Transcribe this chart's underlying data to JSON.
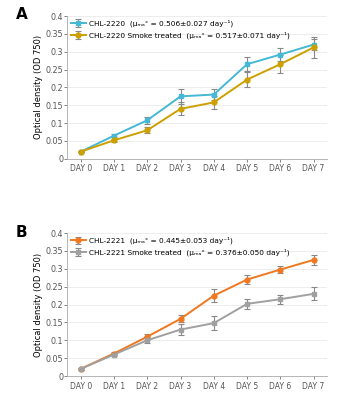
{
  "days": [
    0,
    1,
    2,
    3,
    4,
    5,
    6,
    7
  ],
  "day_labels": [
    "DAY 0",
    "DAY 1",
    "DAY 2",
    "DAY 3",
    "DAY 4",
    "DAY 5",
    "DAY 6",
    "DAY 7"
  ],
  "panel_A": {
    "label": "A",
    "series1": {
      "label": "CHL-2220  (μₘₐˣ = 0.506±0.027 day⁻¹)",
      "color": "#45B8D5",
      "marker": "s",
      "values": [
        0.02,
        0.065,
        0.108,
        0.175,
        0.18,
        0.265,
        0.292,
        0.32
      ],
      "errors": [
        0.002,
        0.005,
        0.01,
        0.02,
        0.015,
        0.02,
        0.018,
        0.015
      ]
    },
    "series2": {
      "label": "CHL-2220 Smoke treated  (μₘₐˣ = 0.517±0.071 day⁻¹)",
      "color": "#CCA000",
      "marker": "o",
      "values": [
        0.02,
        0.052,
        0.08,
        0.14,
        0.158,
        0.222,
        0.265,
        0.312
      ],
      "errors": [
        0.002,
        0.005,
        0.008,
        0.018,
        0.018,
        0.022,
        0.025,
        0.03
      ]
    },
    "ylim": [
      0,
      0.4
    ],
    "yticks": [
      0,
      0.05,
      0.1,
      0.15,
      0.2,
      0.25,
      0.3,
      0.35,
      0.4
    ],
    "ytick_labels": [
      "0",
      "0.05",
      "0.1",
      "0.15",
      "0.2",
      "0.25",
      "0.3",
      "0.35",
      "0.4"
    ],
    "ylabel": "Optical density (OD 750)"
  },
  "panel_B": {
    "label": "B",
    "series1": {
      "label": "CHL-2221  (μₘₐˣ = 0.445±0.053 day⁻¹)",
      "color": "#F07820",
      "marker": "o",
      "values": [
        0.02,
        0.063,
        0.11,
        0.16,
        0.225,
        0.27,
        0.298,
        0.325
      ],
      "errors": [
        0.002,
        0.005,
        0.008,
        0.01,
        0.018,
        0.012,
        0.01,
        0.015
      ]
    },
    "series2": {
      "label": "CHL-2221 Smoke treated  (μₘₐˣ = 0.376±0.050 day⁻¹)",
      "color": "#A0A0A0",
      "marker": "s",
      "values": [
        0.02,
        0.06,
        0.1,
        0.13,
        0.148,
        0.202,
        0.215,
        0.23
      ],
      "errors": [
        0.002,
        0.005,
        0.008,
        0.015,
        0.02,
        0.015,
        0.012,
        0.018
      ]
    },
    "ylim": [
      0,
      0.4
    ],
    "yticks": [
      0,
      0.05,
      0.1,
      0.15,
      0.2,
      0.25,
      0.3,
      0.35,
      0.4
    ],
    "ytick_labels": [
      "0",
      "0.05",
      "0.1",
      "0.15",
      "0.2",
      "0.25",
      "0.3",
      "0.35",
      "0.4"
    ],
    "ylabel": "Optical density (OD 750)"
  },
  "background_color": "#ffffff",
  "ecolor": "#888888",
  "capsize": 2,
  "linewidth": 1.4,
  "markersize": 3.5
}
